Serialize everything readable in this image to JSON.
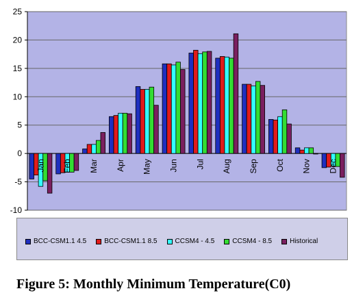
{
  "caption": "Figure 5: Monthly Minimum Temperature(C0)",
  "chart_data": {
    "type": "bar",
    "title": "",
    "xlabel": "",
    "ylabel": "",
    "ylim": [
      -10,
      25
    ],
    "yticks": [
      -10,
      -5,
      0,
      5,
      10,
      15,
      20,
      25
    ],
    "grid": true,
    "legend_position": "bottom",
    "plot_background": "#b3b3e6",
    "categories": [
      "Jan",
      "Feb",
      "Mar",
      "Apr",
      "May",
      "Jun",
      "Jul",
      "Aug",
      "Sep",
      "Oct",
      "Nov",
      "Dec"
    ],
    "series": [
      {
        "name": "BCC-CSM1.1 4.5",
        "color": "#1f2fbf",
        "values": [
          -4.5,
          -3.6,
          0.8,
          6.5,
          11.8,
          15.8,
          17.7,
          16.8,
          12.2,
          6.0,
          1.0,
          -2.5
        ]
      },
      {
        "name": "BCC-CSM1.1 8.5",
        "color": "#e01b1b",
        "values": [
          -3.8,
          -3.4,
          1.6,
          6.7,
          11.3,
          15.8,
          18.2,
          17.1,
          12.2,
          5.9,
          0.6,
          -2.4
        ]
      },
      {
        "name": "CCSM4 - 4.5",
        "color": "#33ffff",
        "values": [
          -5.8,
          -3.3,
          1.6,
          7.1,
          11.3,
          15.6,
          17.6,
          17.0,
          11.9,
          6.5,
          1.0,
          -2.2
        ]
      },
      {
        "name": "CCSM4 - 8.5",
        "color": "#33dd33",
        "values": [
          -4.8,
          -3.3,
          2.3,
          7.1,
          11.7,
          16.1,
          17.9,
          16.8,
          12.7,
          7.7,
          1.0,
          -2.3
        ]
      },
      {
        "name": "Historical",
        "color": "#7a1f5f",
        "values": [
          -7.0,
          -3.0,
          3.7,
          7.0,
          8.5,
          14.8,
          18.0,
          21.1,
          12.0,
          5.2,
          -0.1,
          -4.2
        ]
      }
    ]
  }
}
